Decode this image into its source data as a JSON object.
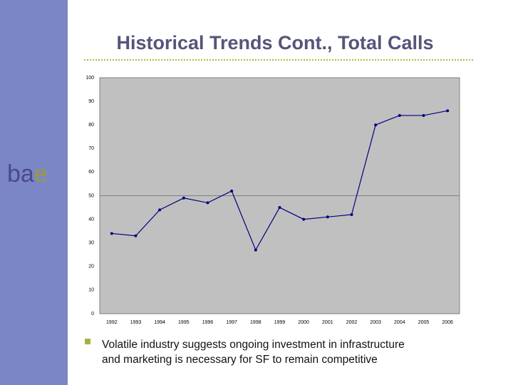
{
  "logo": [
    "ba",
    "e"
  ],
  "bullet": [
    "Volatile industry suggests ongoing investment in infrastructure",
    "and marketing is necessary for SF to remain competitive"
  ],
  "chart_data": {
    "type": "line",
    "title": "Historical Trends Cont., Total Calls",
    "categories": [
      "1992",
      "1993",
      "1994",
      "1995",
      "1996",
      "1997",
      "1998",
      "1999",
      "2000",
      "2001",
      "2002",
      "2003",
      "2004",
      "2005",
      "2006"
    ],
    "series": [
      {
        "color": "#000080",
        "values": [
          34,
          33,
          44,
          49,
          47,
          52,
          27,
          45,
          40,
          41,
          42,
          80,
          84,
          84,
          86
        ]
      }
    ],
    "ylim": [
      0,
      100
    ],
    "yticks": [
      0,
      10,
      20,
      30,
      40,
      50,
      60,
      70,
      80,
      90,
      100
    ],
    "ygrid": [
      50
    ]
  }
}
